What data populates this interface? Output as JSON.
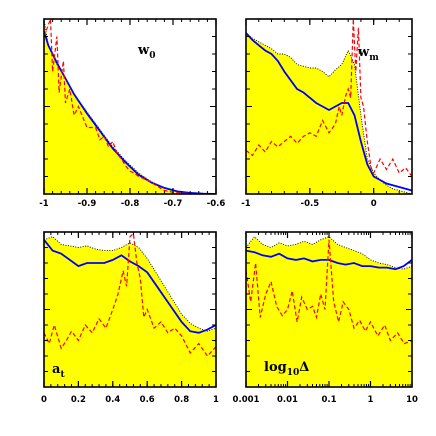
{
  "chart_data": [
    {
      "type": "area",
      "panel_label": "w",
      "panel_label_sub": "0",
      "xlim": [
        -1,
        -0.6
      ],
      "ylim": [
        0,
        1
      ],
      "xticks": [
        -1,
        -0.9,
        -0.8,
        -0.7,
        -0.6
      ],
      "xtick_labels": [
        "-1",
        "-0.9",
        "-0.8",
        "-0.7",
        "-0.6"
      ],
      "series": [
        {
          "kind": "yellow-fill-dotted-edge",
          "color": "#ffff00",
          "x": [
            -1,
            -0.99,
            -0.97,
            -0.95,
            -0.93,
            -0.9,
            -0.87,
            -0.84,
            -0.81,
            -0.78,
            -0.75,
            -0.72,
            -0.69,
            -0.66,
            -0.63,
            -0.6
          ],
          "y": [
            1.0,
            0.85,
            0.74,
            0.66,
            0.57,
            0.47,
            0.37,
            0.27,
            0.19,
            0.12,
            0.07,
            0.035,
            0.015,
            0.005,
            0.001,
            0.0
          ]
        },
        {
          "kind": "solid",
          "color": "#0000ff",
          "x": [
            -1,
            -0.99,
            -0.97,
            -0.95,
            -0.93,
            -0.9,
            -0.87,
            -0.84,
            -0.81,
            -0.78,
            -0.75,
            -0.72,
            -0.69,
            -0.66,
            -0.63,
            -0.6
          ],
          "y": [
            0.93,
            0.85,
            0.75,
            0.66,
            0.57,
            0.46,
            0.36,
            0.26,
            0.18,
            0.11,
            0.065,
            0.035,
            0.015,
            0.006,
            0.002,
            0.0
          ]
        },
        {
          "kind": "dashed",
          "color": "#ff0000",
          "x": [
            -1,
            -0.985,
            -0.98,
            -0.97,
            -0.965,
            -0.955,
            -0.95,
            -0.94,
            -0.93,
            -0.92,
            -0.91,
            -0.9,
            -0.88,
            -0.87,
            -0.86,
            -0.85,
            -0.84,
            -0.83,
            -0.82,
            -0.81,
            -0.8,
            -0.79,
            -0.78,
            -0.76,
            -0.74,
            -0.72,
            -0.7,
            -0.68,
            -0.66,
            -0.64
          ],
          "y": [
            0.9,
            1.0,
            0.7,
            0.9,
            0.58,
            0.76,
            0.52,
            0.6,
            0.45,
            0.5,
            0.44,
            0.38,
            0.38,
            0.31,
            0.33,
            0.27,
            0.3,
            0.23,
            0.2,
            0.16,
            0.13,
            0.12,
            0.1,
            0.08,
            0.05,
            0.02,
            0.01,
            0.005,
            0.003,
            0.0
          ]
        }
      ]
    },
    {
      "type": "area",
      "panel_label": "w",
      "panel_label_sub": "m",
      "xlim": [
        -1,
        0.3
      ],
      "ylim": [
        0,
        1
      ],
      "xticks": [
        -1,
        -0.5,
        0
      ],
      "xtick_labels": [
        "-1",
        "-0.5",
        "0"
      ],
      "series": [
        {
          "kind": "yellow-fill-dotted-edge",
          "color": "#ffff00",
          "x": [
            -1,
            -0.95,
            -0.9,
            -0.85,
            -0.8,
            -0.75,
            -0.7,
            -0.65,
            -0.6,
            -0.55,
            -0.5,
            -0.45,
            -0.4,
            -0.35,
            -0.3,
            -0.25,
            -0.2,
            -0.15,
            -0.1,
            -0.05,
            0,
            0.05,
            0.1,
            0.15,
            0.2,
            0.25,
            0.3
          ],
          "y": [
            0.92,
            0.89,
            0.87,
            0.85,
            0.83,
            0.8,
            0.8,
            0.78,
            0.74,
            0.73,
            0.72,
            0.72,
            0.7,
            0.67,
            0.71,
            0.74,
            0.82,
            0.74,
            0.45,
            0.2,
            0.12,
            0.08,
            0.05,
            0.03,
            0.02,
            0.01,
            0.0
          ]
        },
        {
          "kind": "solid",
          "color": "#0000ff",
          "x": [
            -1,
            -0.95,
            -0.9,
            -0.85,
            -0.8,
            -0.75,
            -0.7,
            -0.65,
            -0.6,
            -0.55,
            -0.5,
            -0.45,
            -0.4,
            -0.35,
            -0.3,
            -0.25,
            -0.2,
            -0.15,
            -0.1,
            -0.05,
            0,
            0.05,
            0.1,
            0.15,
            0.2,
            0.25,
            0.3
          ],
          "y": [
            0.92,
            0.88,
            0.85,
            0.82,
            0.8,
            0.76,
            0.7,
            0.65,
            0.6,
            0.58,
            0.55,
            0.52,
            0.5,
            0.48,
            0.5,
            0.52,
            0.52,
            0.45,
            0.3,
            0.17,
            0.1,
            0.08,
            0.06,
            0.05,
            0.04,
            0.03,
            0.02
          ]
        },
        {
          "kind": "dashed",
          "color": "#ff0000",
          "x": [
            -1,
            -0.95,
            -0.9,
            -0.85,
            -0.8,
            -0.75,
            -0.7,
            -0.65,
            -0.6,
            -0.55,
            -0.5,
            -0.45,
            -0.4,
            -0.35,
            -0.3,
            -0.27,
            -0.25,
            -0.22,
            -0.2,
            -0.18,
            -0.16,
            -0.14,
            -0.12,
            -0.1,
            -0.08,
            -0.05,
            -0.02,
            0,
            0.05,
            0.1,
            0.15,
            0.2,
            0.25,
            0.3
          ],
          "y": [
            0.25,
            0.22,
            0.28,
            0.24,
            0.3,
            0.27,
            0.3,
            0.33,
            0.29,
            0.33,
            0.35,
            0.33,
            0.42,
            0.35,
            0.4,
            0.5,
            0.45,
            0.56,
            0.6,
            0.55,
            1.0,
            0.7,
            0.95,
            0.55,
            0.5,
            0.3,
            0.15,
            0.12,
            0.2,
            0.14,
            0.2,
            0.12,
            0.15,
            0.1
          ]
        }
      ]
    },
    {
      "type": "area",
      "panel_label": "a",
      "panel_label_sub": "t",
      "xlim": [
        0,
        1
      ],
      "ylim": [
        0,
        1
      ],
      "xticks": [
        0,
        0.2,
        0.4,
        0.6,
        0.8,
        1
      ],
      "xtick_labels": [
        "0",
        "0.2",
        "0.4",
        "0.6",
        "0.8",
        "1"
      ],
      "series": [
        {
          "kind": "yellow-fill-dotted-edge",
          "color": "#ffff00",
          "x": [
            0,
            0.05,
            0.1,
            0.15,
            0.2,
            0.25,
            0.3,
            0.35,
            0.4,
            0.45,
            0.5,
            0.55,
            0.6,
            0.65,
            0.7,
            0.75,
            0.8,
            0.85,
            0.9,
            0.95,
            1.0
          ],
          "y": [
            0.95,
            0.97,
            0.92,
            0.91,
            0.9,
            0.91,
            0.89,
            0.88,
            0.88,
            0.9,
            0.93,
            0.9,
            0.83,
            0.74,
            0.65,
            0.56,
            0.47,
            0.41,
            0.38,
            0.36,
            0.38
          ]
        },
        {
          "kind": "solid",
          "color": "#0000ff",
          "x": [
            0,
            0.05,
            0.1,
            0.15,
            0.2,
            0.25,
            0.3,
            0.35,
            0.4,
            0.45,
            0.5,
            0.55,
            0.6,
            0.65,
            0.7,
            0.75,
            0.8,
            0.85,
            0.9,
            0.95,
            1.0
          ],
          "y": [
            0.95,
            0.88,
            0.86,
            0.82,
            0.78,
            0.8,
            0.8,
            0.8,
            0.82,
            0.85,
            0.81,
            0.78,
            0.74,
            0.66,
            0.58,
            0.5,
            0.42,
            0.36,
            0.35,
            0.37,
            0.4
          ]
        },
        {
          "kind": "dashed",
          "color": "#ff0000",
          "x": [
            0,
            0.03,
            0.06,
            0.1,
            0.13,
            0.16,
            0.2,
            0.24,
            0.28,
            0.32,
            0.36,
            0.4,
            0.43,
            0.46,
            0.48,
            0.5,
            0.52,
            0.54,
            0.56,
            0.58,
            0.6,
            0.64,
            0.68,
            0.72,
            0.76,
            0.8,
            0.85,
            0.9,
            0.95,
            1.0
          ],
          "y": [
            0.35,
            0.28,
            0.4,
            0.25,
            0.3,
            0.36,
            0.3,
            0.4,
            0.35,
            0.44,
            0.38,
            0.5,
            0.6,
            0.75,
            0.65,
            0.97,
            0.99,
            0.8,
            0.7,
            0.45,
            0.5,
            0.38,
            0.42,
            0.35,
            0.38,
            0.33,
            0.22,
            0.28,
            0.2,
            0.26
          ]
        }
      ]
    },
    {
      "type": "area",
      "panel_label": "log",
      "panel_label_sub": "10",
      "panel_label_suffix": "Δ",
      "xscale": "log",
      "xlim": [
        0.001,
        10
      ],
      "ylim": [
        0,
        1
      ],
      "xticks": [
        0.001,
        0.01,
        0.1,
        1,
        10
      ],
      "xtick_labels": [
        "0.001",
        "0.01",
        "0.1",
        "1",
        "10"
      ],
      "series": [
        {
          "kind": "yellow-fill-dotted-edge",
          "color": "#ffff00",
          "x": [
            0.001,
            0.0016,
            0.0025,
            0.004,
            0.0063,
            0.01,
            0.016,
            0.025,
            0.04,
            0.063,
            0.1,
            0.16,
            0.25,
            0.4,
            0.63,
            1,
            1.6,
            2.5,
            4,
            6.3,
            10
          ],
          "y": [
            0.9,
            0.97,
            0.92,
            0.9,
            0.93,
            0.91,
            0.92,
            0.94,
            0.92,
            0.95,
            0.97,
            0.92,
            0.9,
            0.88,
            0.86,
            0.82,
            0.8,
            0.79,
            0.77,
            0.76,
            0.78
          ]
        },
        {
          "kind": "solid",
          "color": "#0000ff",
          "x": [
            0.001,
            0.0016,
            0.0025,
            0.004,
            0.0063,
            0.01,
            0.016,
            0.025,
            0.04,
            0.063,
            0.1,
            0.16,
            0.25,
            0.4,
            0.63,
            1,
            1.6,
            2.5,
            4,
            6.3,
            10
          ],
          "y": [
            0.88,
            0.87,
            0.85,
            0.84,
            0.86,
            0.83,
            0.82,
            0.83,
            0.81,
            0.82,
            0.82,
            0.8,
            0.79,
            0.8,
            0.78,
            0.78,
            0.77,
            0.77,
            0.76,
            0.78,
            0.82
          ]
        },
        {
          "kind": "dashed",
          "color": "#ff0000",
          "x": [
            0.001,
            0.0013,
            0.0017,
            0.0022,
            0.003,
            0.004,
            0.0055,
            0.0075,
            0.01,
            0.013,
            0.017,
            0.022,
            0.03,
            0.04,
            0.05,
            0.063,
            0.08,
            0.1,
            0.13,
            0.17,
            0.22,
            0.3,
            0.4,
            0.55,
            0.75,
            1,
            1.5,
            2.2,
            3,
            4.5,
            6.5,
            10
          ],
          "y": [
            0.75,
            0.55,
            0.8,
            0.45,
            0.6,
            0.68,
            0.52,
            0.46,
            0.5,
            0.62,
            0.42,
            0.58,
            0.5,
            0.52,
            0.45,
            0.6,
            0.5,
            0.95,
            0.55,
            0.42,
            0.55,
            0.5,
            0.38,
            0.43,
            0.36,
            0.42,
            0.33,
            0.4,
            0.3,
            0.35,
            0.28,
            0.3
          ]
        }
      ]
    }
  ]
}
